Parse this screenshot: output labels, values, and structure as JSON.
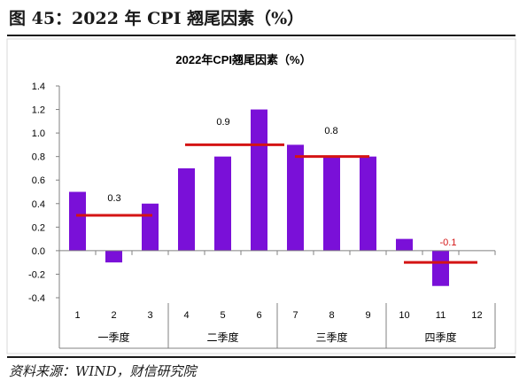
{
  "header": {
    "figure_title": "图 45：2022 年 CPI 翘尾因素（%）",
    "source": "资料来源：WIND，财信研究院"
  },
  "colors": {
    "bar": "#7A10D8",
    "average_line": "#D41414",
    "axis": "#808080",
    "text": "#000000",
    "negative_label": "#D41414"
  },
  "chart_data": {
    "type": "bar",
    "title": "2022年CPI翘尾因素（%）",
    "categories": [
      "1",
      "2",
      "3",
      "4",
      "5",
      "6",
      "7",
      "8",
      "9",
      "10",
      "11",
      "12"
    ],
    "groups": [
      {
        "label": "一季度",
        "categories": [
          "1",
          "2",
          "3"
        ],
        "average": 0.3,
        "average_label": "0.3"
      },
      {
        "label": "二季度",
        "categories": [
          "4",
          "5",
          "6"
        ],
        "average": 0.9,
        "average_label": "0.9"
      },
      {
        "label": "三季度",
        "categories": [
          "7",
          "8",
          "9"
        ],
        "average": 0.8,
        "average_label": "0.8"
      },
      {
        "label": "四季度",
        "categories": [
          "10",
          "11",
          "12"
        ],
        "average": -0.1,
        "average_label": "-0.1"
      }
    ],
    "values": [
      0.5,
      -0.1,
      0.4,
      0.7,
      0.8,
      1.2,
      0.9,
      0.8,
      0.8,
      0.1,
      -0.3,
      0.0
    ],
    "ylim": [
      -0.4,
      1.4
    ],
    "yticks": [
      "1.4",
      "1.2",
      "1.0",
      "0.8",
      "0.6",
      "0.4",
      "0.2",
      "0.0",
      "-0.2",
      "-0.4"
    ],
    "grid": false,
    "legend": "none"
  }
}
